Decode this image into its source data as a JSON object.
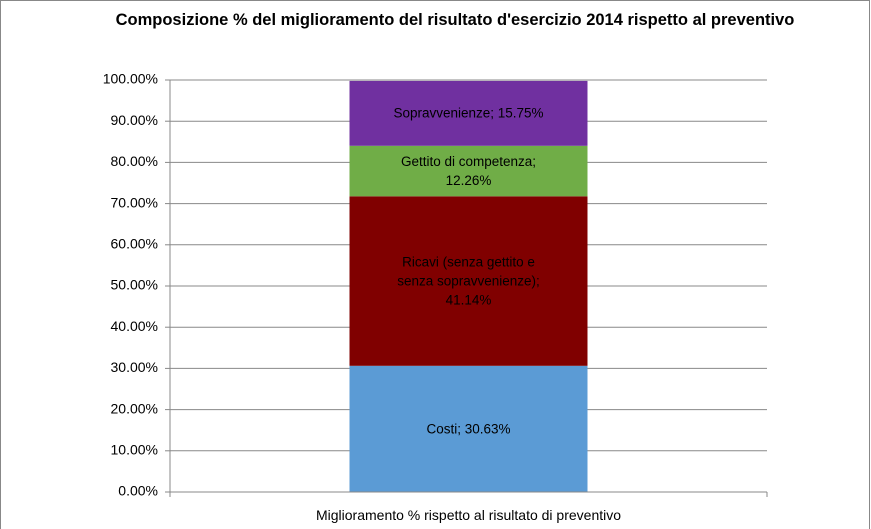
{
  "chart_data": {
    "type": "stacked-bar",
    "title": "Composizione % del miglioramento del risultato d'esercizio 2014 rispetto al preventivo",
    "categories": [
      "Miglioramento % rispetto al risultato di preventivo"
    ],
    "series": [
      {
        "color": "#5b9bd5",
        "values": [
          30.63
        ],
        "value_labels": [
          "Costi; 30.63%"
        ]
      },
      {
        "color": "#800000",
        "values": [
          41.14
        ],
        "value_labels": [
          "Ricavi (senza gettito e senza sopravvenienze); 41.14%"
        ]
      },
      {
        "color": "#70ad47",
        "values": [
          12.26
        ],
        "value_labels": [
          "Gettito di competenza; 12.26%"
        ]
      },
      {
        "color": "#7030a0",
        "values": [
          15.75
        ],
        "value_labels": [
          "Sopravvenienze; 15.75%"
        ]
      }
    ],
    "ylim": [
      0,
      100
    ],
    "yticks": [
      {
        "value": 0,
        "label": "0.00%"
      },
      {
        "value": 10,
        "label": "10.00%"
      },
      {
        "value": 20,
        "label": "20.00%"
      },
      {
        "value": 30,
        "label": "30.00%"
      },
      {
        "value": 40,
        "label": "40.00%"
      },
      {
        "value": 50,
        "label": "50.00%"
      },
      {
        "value": 60,
        "label": "60.00%"
      },
      {
        "value": 70,
        "label": "70.00%"
      },
      {
        "value": 80,
        "label": "80.00%"
      },
      {
        "value": 90,
        "label": "90.00%"
      },
      {
        "value": 100,
        "label": "100.00%"
      }
    ],
    "grid": true
  }
}
